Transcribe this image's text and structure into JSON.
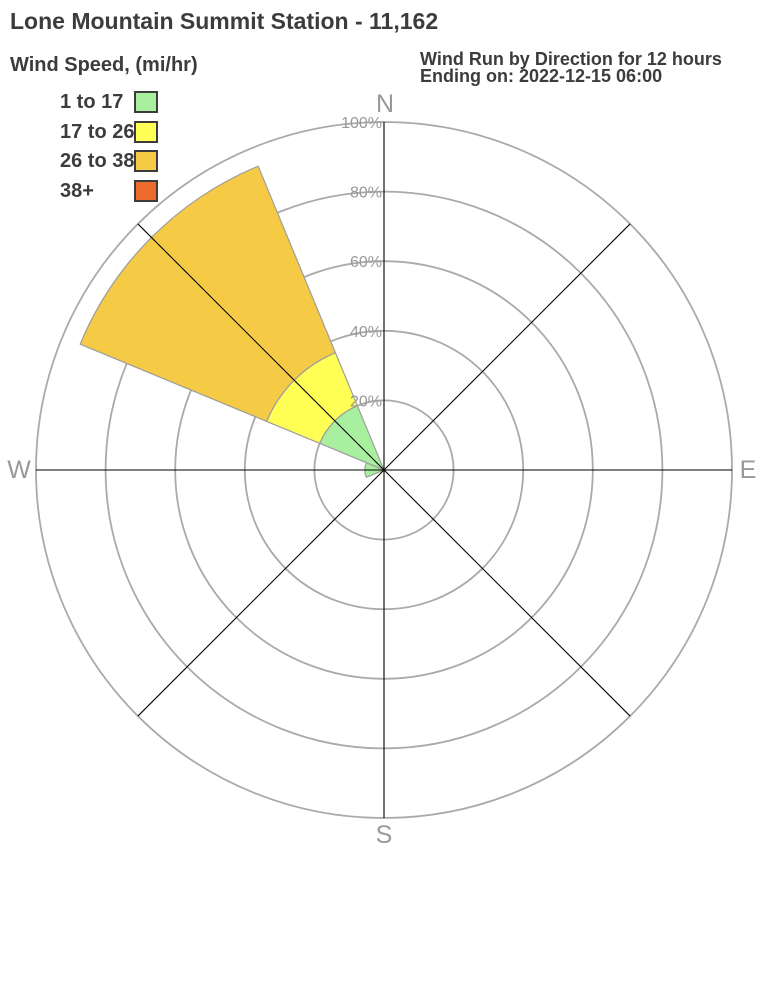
{
  "page": {
    "title": "Lone Mountain Summit Station - 11,162"
  },
  "colors": {
    "background": "#ffffff",
    "ring": "#aaaaaa",
    "axis": "#000000",
    "muted_text": "#999999",
    "dark_text": "#3c3c3c",
    "wedge_outline": "#9d9d9d"
  },
  "chart_data": {
    "type": "windrose",
    "title": "Wind Run by Direction for 12 hours",
    "subtitle": "Ending on: 2022-12-15 06:00",
    "units_label": "Wind Speed, (mi/hr)",
    "value_unit": "percent of wind run",
    "sector_width_deg": 45,
    "rings_percent": [
      20,
      40,
      60,
      80,
      100
    ],
    "ring_labels": [
      "20%",
      "40%",
      "60%",
      "80%",
      "100%"
    ],
    "compass": [
      {
        "label": "N",
        "deg": 0
      },
      {
        "label": "E",
        "deg": 90
      },
      {
        "label": "S",
        "deg": 180
      },
      {
        "label": "W",
        "deg": 270
      }
    ],
    "speed_bins": [
      {
        "label": "1 to 17",
        "color": "#a8f0a0"
      },
      {
        "label": "17 to 26",
        "color": "#ffff55"
      },
      {
        "label": "26 to 38",
        "color": "#f5cb45"
      },
      {
        "label": "38+",
        "color": "#ec6c2c"
      }
    ],
    "directions": [
      {
        "direction": "NW",
        "center_deg": 315,
        "values_percent": [
          20,
          16.5,
          58,
          0
        ],
        "total_percent": 94.5
      },
      {
        "direction": "W",
        "center_deg": 270,
        "values_percent": [
          5.5,
          0,
          0,
          0
        ],
        "total_percent": 5.5
      }
    ]
  }
}
